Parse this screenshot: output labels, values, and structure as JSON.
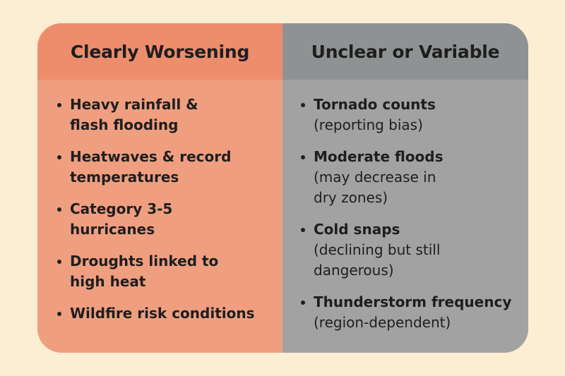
{
  "columns": [
    {
      "header": "Clearly Worsening",
      "color": "#ee8d6c",
      "body_color": "#ef9f80",
      "items": [
        {
          "title": "Heavy rainfall & flash flooding",
          "note": ""
        },
        {
          "title": "Heatwaves & record temperatures",
          "note": ""
        },
        {
          "title": "Category 3-5 hurricanes",
          "note": ""
        },
        {
          "title": "Droughts linked to high heat",
          "note": ""
        },
        {
          "title": "Wildfire risk conditions",
          "note": ""
        }
      ]
    },
    {
      "header": "Unclear or Variable",
      "color": "#8f9293",
      "body_color": "#a2a2a2",
      "items": [
        {
          "title": "Tornado counts",
          "note": "(reporting bias)"
        },
        {
          "title": "Moderate floods",
          "note": "(may decrease in dry zones)"
        },
        {
          "title": "Cold snaps",
          "note": "(declining but still dangerous)"
        },
        {
          "title": "Thunderstorm frequency",
          "note": "(region-dependent)"
        }
      ]
    }
  ],
  "background_color": "#fbeed3"
}
